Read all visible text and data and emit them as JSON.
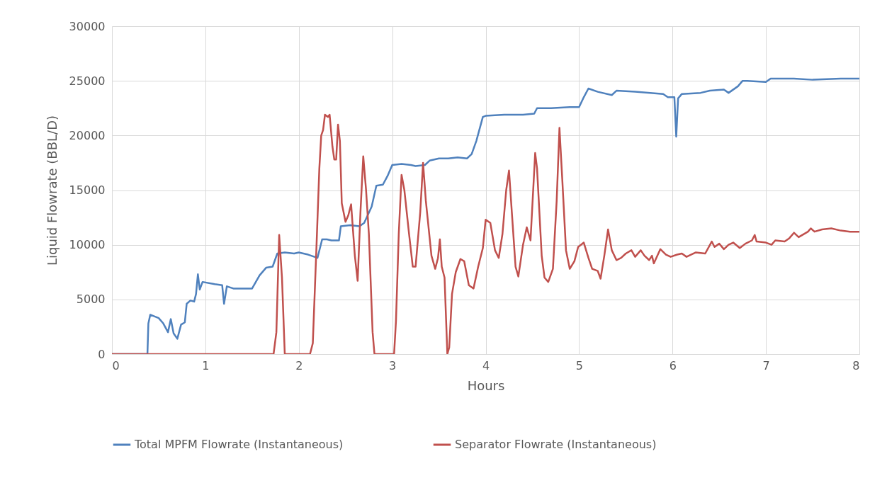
{
  "chart_data": {
    "type": "line",
    "xlabel": "Hours",
    "ylabel": "Liquid Flowrate (BBL/D)",
    "xlim": [
      0,
      8
    ],
    "xticks": [
      0,
      1,
      2,
      3,
      4,
      5,
      6,
      7,
      8
    ],
    "ylim": [
      0,
      30000
    ],
    "yticks": [
      0,
      5000,
      10000,
      15000,
      20000,
      25000,
      30000
    ],
    "grid": true,
    "legend": "bottom",
    "marker": "none",
    "line_style": "solid",
    "series": [
      {
        "name": "Total MPFM Flowrate (Instantaneous)",
        "color": "#4f81bd",
        "x": [
          0,
          0.38,
          0.39,
          0.41,
          0.5,
          0.55,
          0.6,
          0.63,
          0.66,
          0.7,
          0.74,
          0.78,
          0.8,
          0.84,
          0.88,
          0.9,
          0.92,
          0.94,
          0.97,
          1.1,
          1.18,
          1.2,
          1.23,
          1.3,
          1.5,
          1.58,
          1.65,
          1.72,
          1.77,
          1.85,
          1.95,
          2.0,
          2.1,
          2.2,
          2.25,
          2.3,
          2.35,
          2.43,
          2.45,
          2.55,
          2.65,
          2.7,
          2.78,
          2.83,
          2.9,
          2.95,
          3.0,
          3.1,
          3.2,
          3.25,
          3.35,
          3.4,
          3.5,
          3.6,
          3.7,
          3.8,
          3.85,
          3.9,
          3.97,
          4.0,
          4.2,
          4.4,
          4.52,
          4.55,
          4.7,
          4.9,
          5.0,
          5.05,
          5.1,
          5.2,
          5.35,
          5.4,
          5.6,
          5.9,
          5.95,
          6.0,
          6.02,
          6.04,
          6.06,
          6.1,
          6.3,
          6.4,
          6.55,
          6.6,
          6.7,
          6.75,
          6.8,
          7.0,
          7.05,
          7.3,
          7.5,
          7.8,
          8.0
        ],
        "values": [
          0,
          0,
          2800,
          3600,
          3300,
          2800,
          2000,
          3200,
          1900,
          1400,
          2700,
          2900,
          4600,
          4900,
          4800,
          5500,
          7300,
          5900,
          6600,
          6400,
          6300,
          4600,
          6200,
          6000,
          6000,
          7200,
          7900,
          8000,
          9200,
          9300,
          9200,
          9300,
          9100,
          8800,
          10500,
          10500,
          10400,
          10400,
          11700,
          11800,
          11700,
          12000,
          13500,
          15400,
          15500,
          16300,
          17300,
          17400,
          17300,
          17200,
          17300,
          17700,
          17900,
          17900,
          18000,
          17900,
          18300,
          19500,
          21700,
          21800,
          21900,
          21900,
          22000,
          22500,
          22500,
          22600,
          22600,
          23500,
          24300,
          24000,
          23700,
          24100,
          24000,
          23800,
          23500,
          23500,
          23500,
          19900,
          23400,
          23800,
          23900,
          24100,
          24200,
          23900,
          24500,
          25000,
          25000,
          24900,
          25200,
          25200,
          25100,
          25200,
          25200
        ]
      },
      {
        "name": "Separator Flowrate (Instantaneous)",
        "color": "#c0504d",
        "x": [
          0,
          1.73,
          1.76,
          1.79,
          1.82,
          1.85,
          2.12,
          2.15,
          2.19,
          2.22,
          2.24,
          2.26,
          2.28,
          2.31,
          2.33,
          2.36,
          2.38,
          2.4,
          2.42,
          2.44,
          2.46,
          2.5,
          2.53,
          2.56,
          2.6,
          2.63,
          2.66,
          2.69,
          2.72,
          2.75,
          2.79,
          2.81,
          3.02,
          3.04,
          3.07,
          3.1,
          3.13,
          3.18,
          3.22,
          3.25,
          3.3,
          3.33,
          3.36,
          3.42,
          3.46,
          3.49,
          3.51,
          3.53,
          3.56,
          3.59,
          3.61,
          3.64,
          3.68,
          3.73,
          3.77,
          3.82,
          3.87,
          3.92,
          3.97,
          4.0,
          4.05,
          4.1,
          4.14,
          4.18,
          4.22,
          4.25,
          4.28,
          4.32,
          4.35,
          4.4,
          4.44,
          4.48,
          4.53,
          4.55,
          4.6,
          4.63,
          4.67,
          4.72,
          4.76,
          4.79,
          4.82,
          4.86,
          4.9,
          4.95,
          4.99,
          5.02,
          5.05,
          5.1,
          5.14,
          5.2,
          5.23,
          5.27,
          5.31,
          5.35,
          5.4,
          5.45,
          5.5,
          5.56,
          5.6,
          5.66,
          5.7,
          5.75,
          5.78,
          5.8,
          5.87,
          5.93,
          5.98,
          6.05,
          6.1,
          6.15,
          6.25,
          6.35,
          6.42,
          6.45,
          6.5,
          6.55,
          6.6,
          6.65,
          6.72,
          6.78,
          6.85,
          6.88,
          6.9,
          7.0,
          7.06,
          7.1,
          7.2,
          7.25,
          7.3,
          7.35,
          7.45,
          7.48,
          7.52,
          7.6,
          7.7,
          7.8,
          7.9,
          8.0
        ],
        "values": [
          0,
          0,
          2000,
          10900,
          7000,
          0,
          0,
          1000,
          10000,
          17000,
          20000,
          20500,
          21900,
          21700,
          21900,
          19000,
          17800,
          17800,
          21000,
          19500,
          13800,
          12100,
          12700,
          13700,
          9000,
          6700,
          13000,
          18100,
          15000,
          11000,
          2000,
          0,
          0,
          3000,
          11000,
          16400,
          15000,
          11000,
          8000,
          8000,
          13000,
          17500,
          14000,
          9000,
          7800,
          8800,
          10500,
          8000,
          7000,
          0,
          600,
          5500,
          7500,
          8700,
          8500,
          6300,
          6000,
          8000,
          9700,
          12300,
          12000,
          9500,
          8800,
          11000,
          15000,
          16800,
          13000,
          8000,
          7100,
          10000,
          11600,
          10400,
          18400,
          17000,
          9000,
          7000,
          6600,
          7800,
          14000,
          20700,
          16000,
          9500,
          7800,
          8500,
          9800,
          10000,
          10200,
          8800,
          7800,
          7600,
          6900,
          9000,
          11400,
          9500,
          8600,
          8800,
          9200,
          9500,
          8900,
          9500,
          9000,
          8600,
          9000,
          8300,
          9600,
          9100,
          8900,
          9100,
          9200,
          8900,
          9300,
          9200,
          10300,
          9800,
          10100,
          9600,
          10000,
          10200,
          9700,
          10100,
          10400,
          10900,
          10300,
          10200,
          10000,
          10400,
          10300,
          10600,
          11100,
          10700,
          11200,
          11500,
          11200,
          11400,
          11500,
          11300,
          11200,
          11200
        ]
      }
    ]
  }
}
